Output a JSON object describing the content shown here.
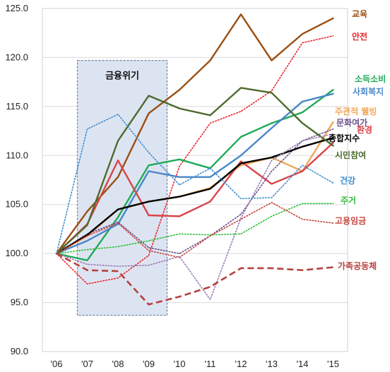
{
  "chart_data": {
    "type": "line",
    "x": [
      "'06",
      "'07",
      "'08",
      "'09",
      "'10",
      "'11",
      "'12",
      "'13",
      "'14",
      "'15"
    ],
    "ylim": [
      90,
      125
    ],
    "yticks": [
      "90.0",
      "95.0",
      "100.0",
      "105.0",
      "110.0",
      "115.0",
      "120.0",
      "125.0"
    ],
    "grid": true,
    "annotation": {
      "label": "금융위기",
      "x_from": "'07",
      "x_to": "'09"
    },
    "series": [
      {
        "name": "교육",
        "color": "#9a4f13",
        "style": "solid",
        "values": [
          100,
          104.3,
          107.8,
          114.3,
          116.7,
          119.7,
          124.4,
          119.7,
          122.4,
          124.0
        ]
      },
      {
        "name": "안전",
        "color": "#e8262b",
        "style": "dotted",
        "values": [
          100,
          96.9,
          97.5,
          99.8,
          108.9,
          113.3,
          114.5,
          116.6,
          121.5,
          122.2
        ]
      },
      {
        "name": "소득소비",
        "color": "#1eab57",
        "style": "solid",
        "values": [
          100,
          99.3,
          103.7,
          109.0,
          109.6,
          108.7,
          111.9,
          113.3,
          114.4,
          116.7
        ]
      },
      {
        "name": "사회복지",
        "color": "#4a87c8",
        "style": "solid",
        "values": [
          100,
          101.3,
          103.0,
          108.4,
          107.8,
          107.8,
          110.0,
          112.8,
          115.5,
          116.3
        ]
      },
      {
        "name": "주관적 웰빙",
        "color": "#f0a85b",
        "style": "solid",
        "values": [
          100,
          101.8,
          104.5,
          105.3,
          105.8,
          106.7,
          109.0,
          109.8,
          108.4,
          113.4
        ]
      },
      {
        "name": "문화여가",
        "color": "#6b4f8c",
        "style": "dotted",
        "values": [
          100,
          102.0,
          103.2,
          100.6,
          100.0,
          101.8,
          104.0,
          108.4,
          111.5,
          112.7
        ]
      },
      {
        "name": "환경",
        "color": "#d9444a",
        "style": "solid",
        "values": [
          100,
          103.0,
          109.5,
          103.9,
          103.8,
          105.3,
          109.4,
          107.1,
          108.4,
          111.3
        ]
      },
      {
        "name": "종합지수",
        "color": "#000000",
        "style": "solid",
        "values": [
          100,
          101.9,
          104.5,
          105.3,
          105.8,
          106.6,
          109.2,
          109.8,
          110.9,
          111.8
        ]
      },
      {
        "name": "시민참여",
        "color": "#4e6b2e",
        "style": "solid",
        "values": [
          100,
          102.9,
          111.5,
          116.1,
          114.8,
          114.1,
          116.9,
          116.4,
          113.3,
          111.0
        ]
      },
      {
        "name": "건강",
        "color": "#3d8fd0",
        "style": "dotted",
        "values": [
          100,
          112.7,
          114.2,
          110.3,
          107.0,
          108.7,
          105.6,
          105.7,
          109.0,
          107.2
        ]
      },
      {
        "name": "주거",
        "color": "#2ebf3a",
        "style": "dotted",
        "values": [
          100,
          100.4,
          100.7,
          101.3,
          102.0,
          101.9,
          102.0,
          103.8,
          105.1,
          105.1
        ]
      },
      {
        "name": "고용임금",
        "color": "#c7443a",
        "style": "dotted",
        "values": [
          100,
          101.8,
          103.1,
          100.3,
          99.6,
          101.8,
          103.5,
          105.2,
          103.5,
          103.1
        ]
      },
      {
        "name": "",
        "color": "#9a7db3",
        "style": "dotted",
        "values": [
          100,
          98.9,
          98.7,
          98.8,
          99.7,
          95.3,
          103.6,
          109.5,
          111.5,
          112.2
        ]
      },
      {
        "name": "가족공동체",
        "color": "#b5413d",
        "style": "dashed",
        "values": [
          100,
          98.3,
          98.2,
          94.8,
          95.6,
          96.6,
          98.5,
          98.5,
          98.3,
          98.6
        ]
      }
    ]
  }
}
